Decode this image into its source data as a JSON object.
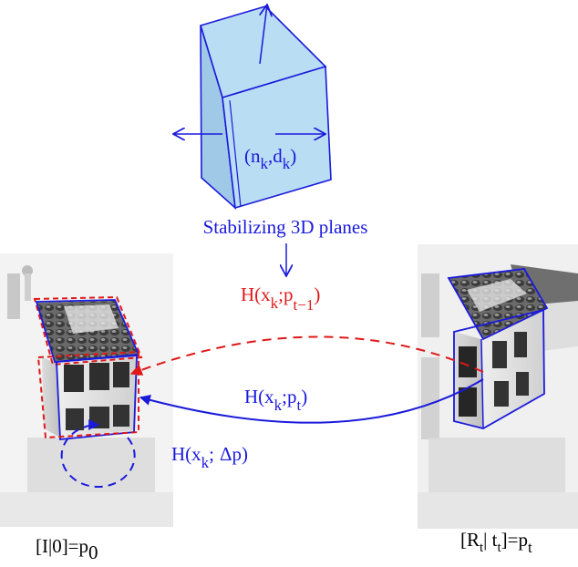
{
  "colors": {
    "blue": "#1a1adc",
    "red": "#e01818",
    "box_fill": "#b9ddf3",
    "text_black": "#000000"
  },
  "box_label": {
    "base": "(n",
    "sub1": "k",
    "mid": ",d",
    "sub2": "k",
    "end": ")"
  },
  "planes_label": "Stabilizing 3D planes",
  "h_prev": {
    "base": "H(x",
    "sub1": "k",
    "mid": ";p",
    "sub2": "t−1",
    "end": ")"
  },
  "h_curr": {
    "base": "H(x",
    "sub1": "k",
    "mid": ";p",
    "sub2": "t",
    "end": ")"
  },
  "h_delta": {
    "base": "H(x",
    "sub1": "k",
    "mid": ";",
    "delta": "Δp",
    "end": ")"
  },
  "pose_left": {
    "base": "[I|0]=p",
    "sub": "0"
  },
  "pose_right": {
    "pre": "[R",
    "sub1": "t",
    "mid": "| t",
    "sub2": "t",
    "end": "]=p",
    "sub3": "t"
  },
  "icons": [
    "arrow-up-icon",
    "arrow-left-icon",
    "arrow-right-icon",
    "arrow-down-icon"
  ]
}
